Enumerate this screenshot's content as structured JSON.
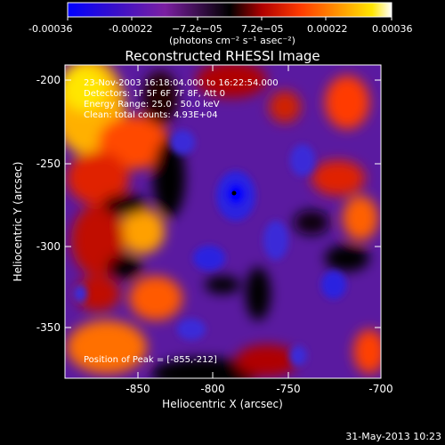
{
  "colorbar": {
    "ticks": [
      "-0.00036",
      "-0.00022",
      "−7.2e−05",
      "7.2e−05",
      "0.00022",
      "0.00036"
    ],
    "unit_label": "(photons cm⁻² s⁻¹ asec⁻²)",
    "stops": [
      "#0000ff",
      "#3a10c8",
      "#7b1fa2",
      "#000000",
      "#b00000",
      "#ff3b00",
      "#ff9800",
      "#ffe600",
      "#ffffff"
    ]
  },
  "plot": {
    "title": "Reconstructed RHESSI Image",
    "xlabel": "Heliocentric X (arcsec)",
    "ylabel": "Heliocentric Y (arcsec)",
    "x_ticks": [
      "-850",
      "-800",
      "-750",
      "-700"
    ],
    "y_ticks": [
      "-200",
      "-250",
      "-300",
      "-350"
    ],
    "xlim": [
      -875,
      -700
    ],
    "ylim": [
      -385,
      -190
    ]
  },
  "annotations": {
    "line1": "23-Nov-2003 16:18:04.000 to 16:22:54.000",
    "line2": "Detectors: 1F 5F 6F 7F 8F, Att 0",
    "line3": "Energy Range: 25.0 - 50.0 keV",
    "line4": "Clean: total counts: 4.93E+04",
    "peak": "Position of Peak = [-855,-212]"
  },
  "footer": {
    "date": "31-May-2013 10:23"
  }
}
